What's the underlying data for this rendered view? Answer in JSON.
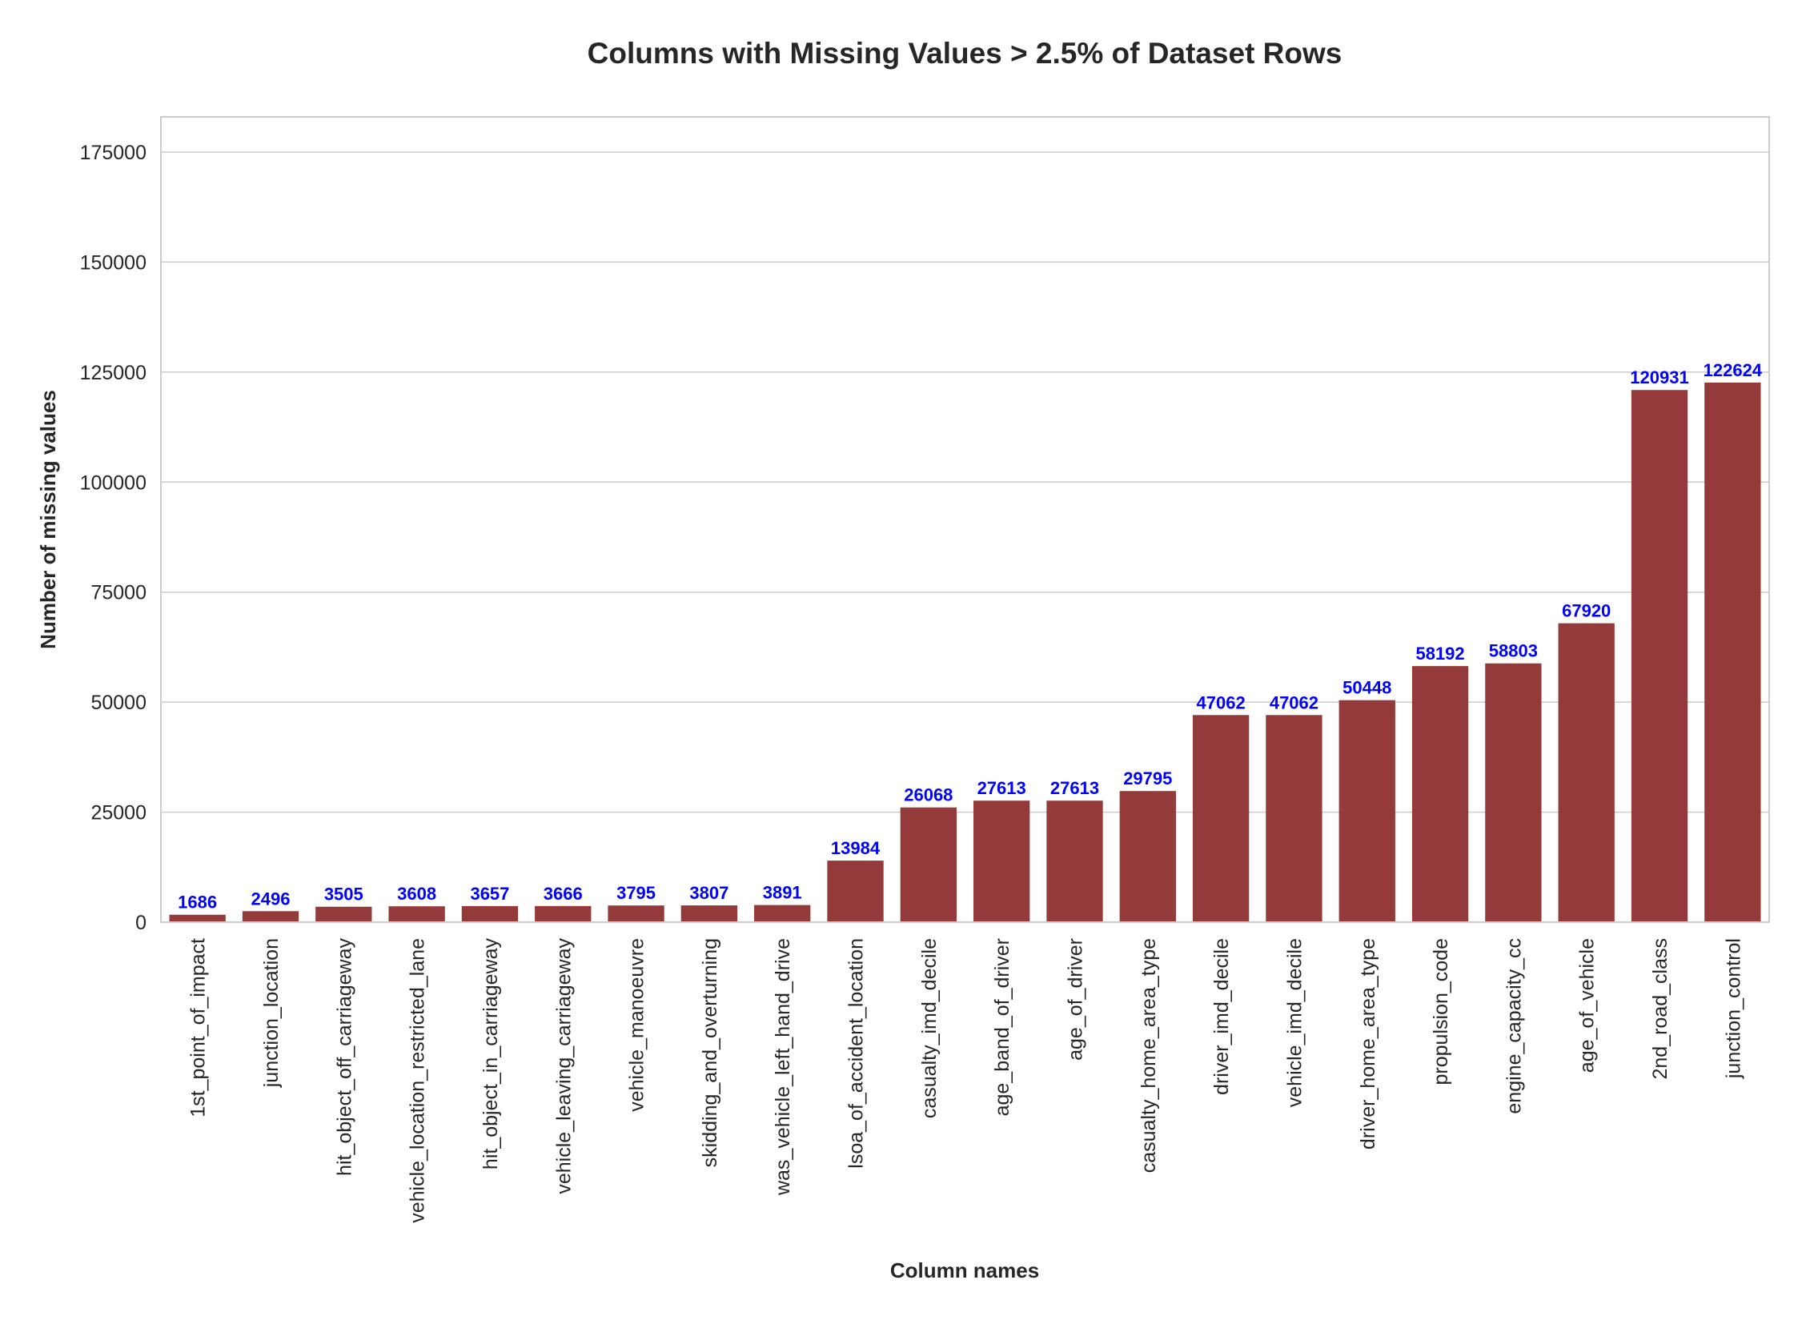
{
  "colors": {
    "bar": "#953A3A",
    "bar_label": "#0000FF",
    "grid": "#CCCCCC",
    "text": "#262626"
  },
  "chart_data": {
    "type": "bar",
    "title": "Columns with Missing Values > 2.5% of Dataset Rows",
    "xlabel": "Column names",
    "ylabel": "Number of missing values",
    "ylim": [
      0,
      183000
    ],
    "yticks": [
      0,
      25000,
      50000,
      75000,
      100000,
      125000,
      150000,
      175000
    ],
    "grid": true,
    "categories": [
      "1st_point_of_impact",
      "junction_location",
      "hit_object_off_carriageway",
      "vehicle_location_restricted_lane",
      "hit_object_in_carriageway",
      "vehicle_leaving_carriageway",
      "vehicle_manoeuvre",
      "skidding_and_overturning",
      "was_vehicle_left_hand_drive",
      "lsoa_of_accident_location",
      "casualty_imd_decile",
      "age_band_of_driver",
      "age_of_driver",
      "casualty_home_area_type",
      "driver_imd_decile",
      "vehicle_imd_decile",
      "driver_home_area_type",
      "propulsion_code",
      "engine_capacity_cc",
      "age_of_vehicle",
      "2nd_road_class",
      "junction_control"
    ],
    "values": [
      1686,
      2496,
      3505,
      3608,
      3657,
      3666,
      3795,
      3807,
      3891,
      13984,
      26068,
      27613,
      27613,
      29795,
      47062,
      47062,
      50448,
      58192,
      58803,
      67920,
      120931,
      122624
    ]
  }
}
